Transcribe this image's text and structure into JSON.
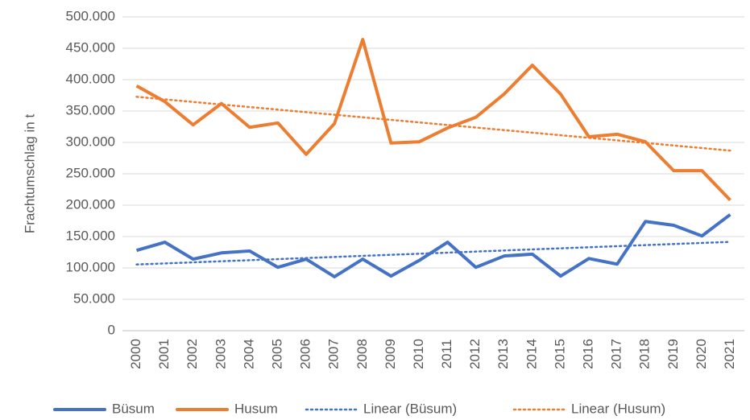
{
  "chart_data": {
    "type": "line",
    "y_label": "Frachtumschlag in t",
    "categories": [
      "2000",
      "2001",
      "2002",
      "2003",
      "2004",
      "2005",
      "2006",
      "2007",
      "2008",
      "2009",
      "2010",
      "2011",
      "2012",
      "2013",
      "2014",
      "2015",
      "2016",
      "2017",
      "2018",
      "2019",
      "2020",
      "2021"
    ],
    "series": [
      {
        "name": "Büsum",
        "color": "#4472c4",
        "values": [
          128000,
          141000,
          114000,
          124000,
          127000,
          101000,
          114000,
          86000,
          114000,
          87000,
          112000,
          141000,
          101000,
          119000,
          122000,
          87000,
          115000,
          106000,
          174000,
          168000,
          151000,
          185000
        ]
      },
      {
        "name": "Husum",
        "color": "#ed7d31",
        "values": [
          390000,
          365000,
          328000,
          362000,
          324000,
          331000,
          281000,
          330000,
          464000,
          299000,
          301000,
          323000,
          340000,
          377000,
          423000,
          377000,
          309000,
          313000,
          301000,
          255000,
          255000,
          208000
        ]
      }
    ],
    "trendlines": [
      {
        "name": "Linear (Büsum)",
        "color": "#4472c4",
        "of_series": 0,
        "style": "dotted"
      },
      {
        "name": "Linear (Husum)",
        "color": "#ed7d31",
        "of_series": 1,
        "style": "dotted"
      }
    ],
    "ylim": [
      0,
      500000
    ],
    "yticks": [
      0,
      {
        "value": 50000,
        "label": "50.000"
      },
      {
        "value": 100000,
        "label": "100.000"
      },
      {
        "value": 150000,
        "label": "150.000"
      },
      {
        "value": 200000,
        "label": "200.000"
      },
      {
        "value": 250000,
        "label": "250.000"
      },
      {
        "value": 300000,
        "label": "300.000"
      },
      {
        "value": 350000,
        "label": "350.000"
      },
      {
        "value": 400000,
        "label": "400.000"
      },
      {
        "value": 450000,
        "label": "450.000"
      },
      {
        "value": 500000,
        "label": "500.000"
      }
    ],
    "grid": true,
    "legend": "bottom"
  }
}
